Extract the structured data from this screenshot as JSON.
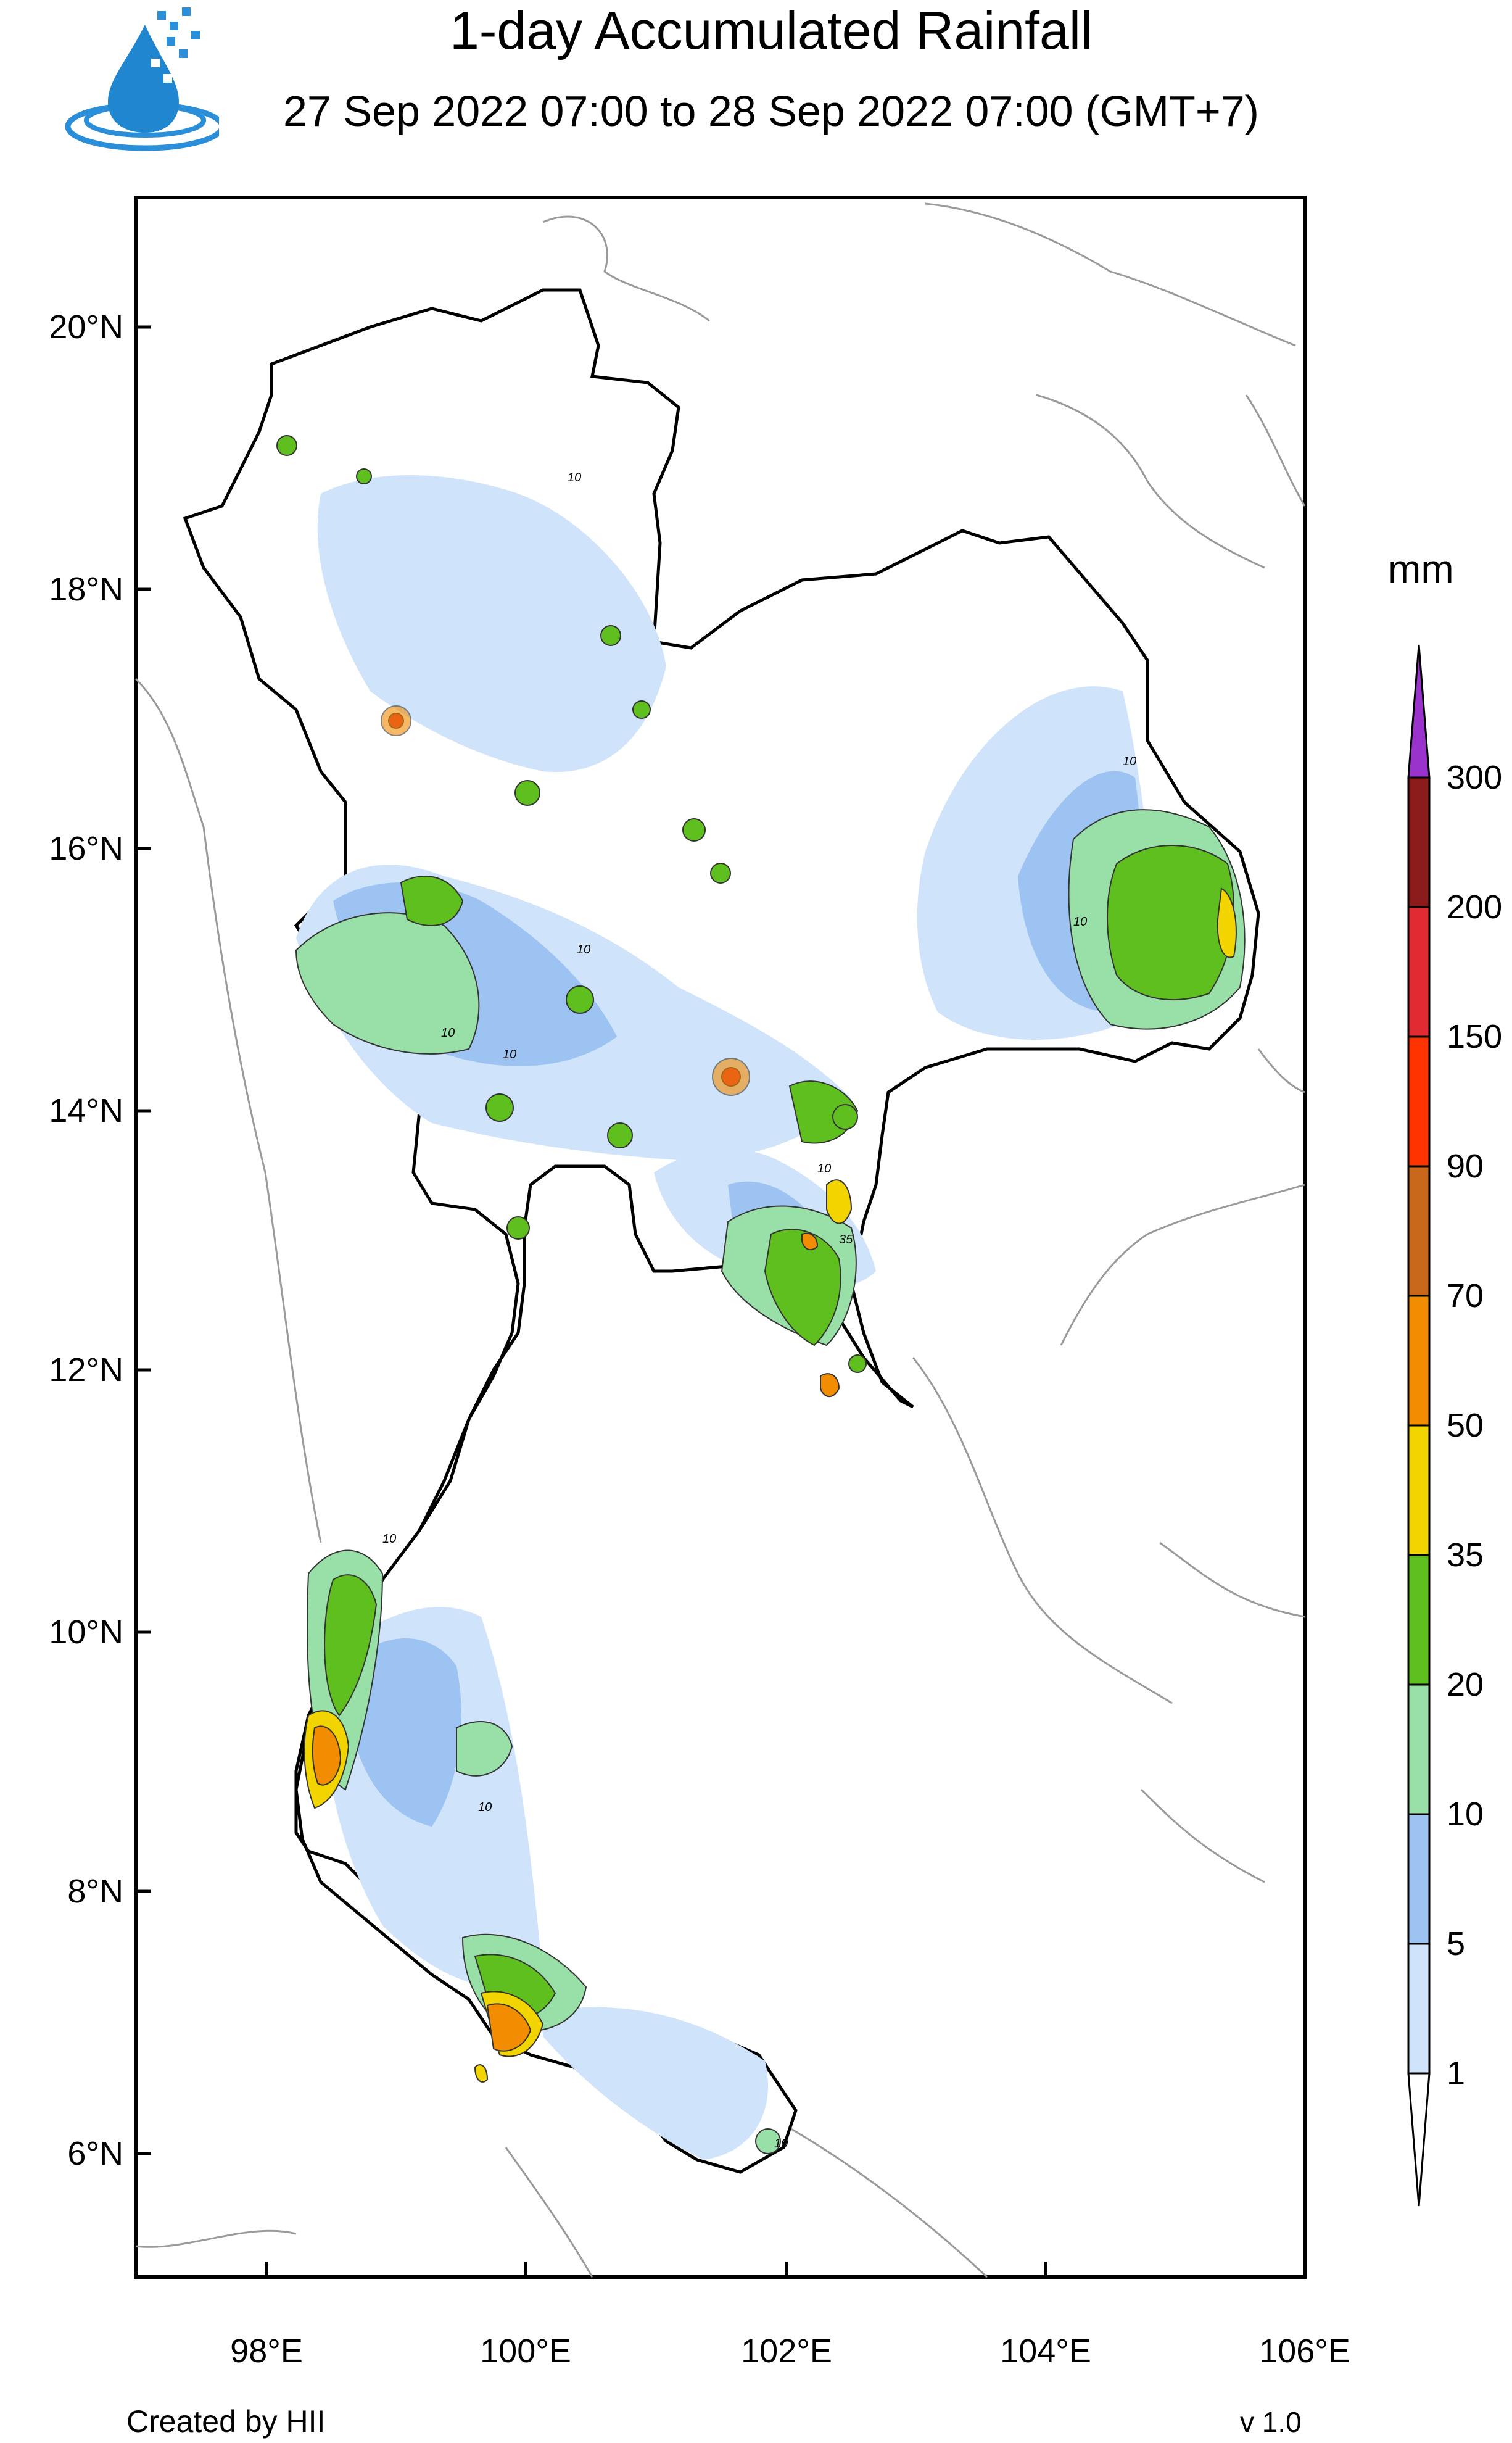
{
  "title": "1-day Accumulated Rainfall",
  "subtitle": "27 Sep 2022 07:00 to 28 Sep 2022 07:00 (GMT+7)",
  "logo_icon": "hii-water-drop-logo-icon",
  "map": {
    "lon_range": [
      97,
      106
    ],
    "lat_range": [
      5,
      21
    ],
    "lat_ticks": [
      "20°N",
      "18°N",
      "16°N",
      "14°N",
      "12°N",
      "10°N",
      "8°N",
      "6°N"
    ],
    "lon_ticks": [
      "98°E",
      "100°E",
      "102°E",
      "104°E",
      "106°E"
    ],
    "contour_labels": [
      "10",
      "10",
      "10",
      "10",
      "10",
      "10",
      "35",
      "10",
      "10",
      "10",
      "10"
    ]
  },
  "colorbar": {
    "unit": "mm",
    "levels": [
      "1",
      "5",
      "10",
      "20",
      "35",
      "50",
      "70",
      "90",
      "150",
      "200",
      "300"
    ],
    "colors": [
      "#cfe3fb",
      "#9cc3f2",
      "#98e0a8",
      "#5fbf1f",
      "#f2d500",
      "#f28c00",
      "#c8661a",
      "#ff3300",
      "#e22a33",
      "#8b1a1a",
      "#9933cc"
    ]
  },
  "footer": {
    "credit": "Created by HII",
    "version": "v 1.0"
  }
}
